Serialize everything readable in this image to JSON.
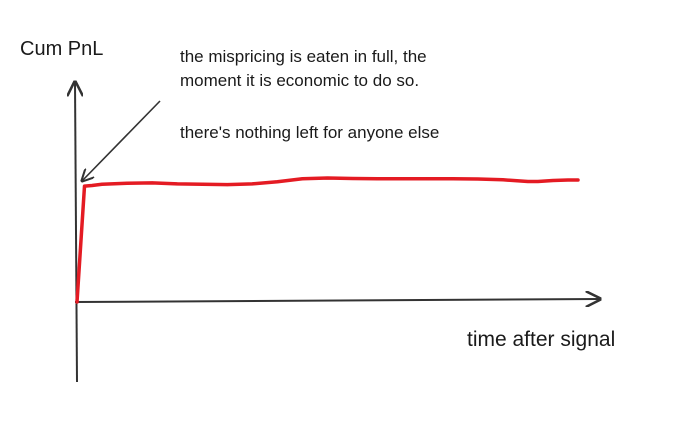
{
  "chart_data": {
    "type": "line",
    "title": "",
    "xlabel": "time after signal",
    "ylabel": "Cum PnL",
    "annotations": [
      "the mispricing is eaten in full, the",
      "moment it is economic to do so.",
      "there's nothing left for anyone else"
    ],
    "grid": false,
    "legend": "none",
    "xlim": [
      0,
      100
    ],
    "ylim": [
      -20,
      100
    ],
    "series": [
      {
        "color": "#e41b23",
        "x": [
          0,
          1.5,
          3,
          5,
          10,
          15,
          20,
          25,
          30,
          35,
          40,
          45,
          50,
          55,
          60,
          65,
          70,
          75,
          80,
          85,
          90,
          92,
          95,
          98,
          100
        ],
        "y": [
          0,
          95,
          95.5,
          96.5,
          97.4,
          97.6,
          96.8,
          96.5,
          96.2,
          96.8,
          98.5,
          101,
          101.6,
          101.2,
          101,
          101,
          101,
          101,
          100.8,
          100.2,
          98.8,
          98.8,
          99.6,
          100,
          100
        ]
      }
    ],
    "axis_color": "#333333"
  }
}
